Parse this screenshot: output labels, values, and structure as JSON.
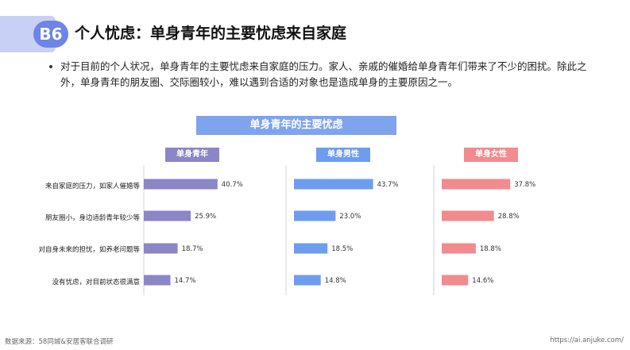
{
  "header": {
    "badge": "B6",
    "title": "个人忧虑：单身青年的主要忧虑来自家庭"
  },
  "bullet": "对于目前的个人状况，单身青年的主要忧虑来自家庭的压力。家人、亲戚的催婚给单身青年们带来了不少的困扰。除此之外，单身青年的朋友圈、交际圈较小，难以遇到合适的对象也是造成单身的主要原因之一。",
  "chart_data": {
    "type": "bar",
    "orientation": "horizontal",
    "title": "单身青年的主要忧虑",
    "categories": [
      "来自家庭的压力，如家人催婚等",
      "朋友圈小，身边适龄青年较少等",
      "对自身未来的担忧，如养老问题等",
      "没有忧虑，对目前状态很满意"
    ],
    "series": [
      {
        "name": "单身青年",
        "values": [
          40.7,
          25.9,
          18.7,
          14.7
        ],
        "color": "#8b86c7",
        "header_color": "#8b86c7"
      },
      {
        "name": "单身男性",
        "values": [
          43.7,
          23.0,
          18.5,
          14.8
        ],
        "color": "#6e9df0",
        "header_color": "#6e9df0"
      },
      {
        "name": "单身女性",
        "values": [
          37.8,
          28.8,
          18.8,
          14.6
        ],
        "color": "#f28b8e",
        "header_color": "#f28b8e"
      }
    ],
    "value_format": "%",
    "xlim": [
      0,
      50
    ]
  },
  "footer": {
    "source": "数据来源：58同城&安居客联合调研",
    "url": "https://ai.anjuke.com/"
  }
}
